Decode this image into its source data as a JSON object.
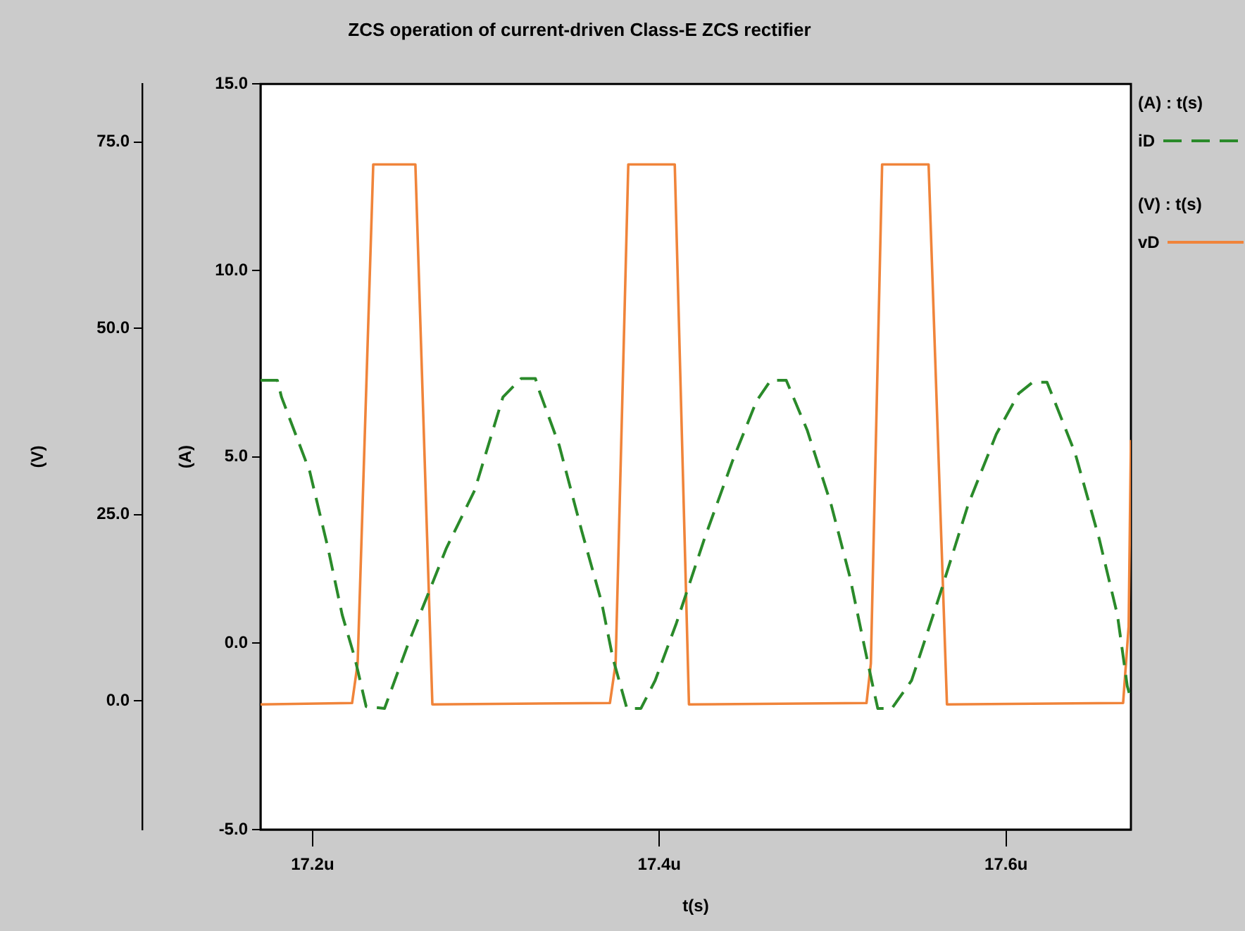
{
  "chart_data": {
    "type": "line",
    "title": "ZCS operation of current-driven Class-E ZCS rectifier",
    "xlabel": "t(s)",
    "ylabel": "(V)",
    "y2label": "(A)",
    "xlim": [
      17.17,
      17.672
    ],
    "xticks": [
      {
        "value": 17.2,
        "label": "17.2u"
      },
      {
        "value": 17.4,
        "label": "17.4u"
      },
      {
        "value": 17.6,
        "label": "17.6u"
      }
    ],
    "y2lim": [
      -5,
      15
    ],
    "y2ticks": [
      {
        "value": -5,
        "label": "-5.0"
      },
      {
        "value": 0,
        "label": "0.0"
      },
      {
        "value": 5,
        "label": "5.0"
      },
      {
        "value": 10,
        "label": "10.0"
      },
      {
        "value": 15,
        "label": "15.0"
      }
    ],
    "ylim": [
      -17.3,
      82.8
    ],
    "yticks": [
      {
        "value": 0,
        "label": "0.0"
      },
      {
        "value": 25,
        "label": "25.0"
      },
      {
        "value": 50,
        "label": "50.0"
      },
      {
        "value": 75,
        "label": "75.0"
      }
    ],
    "legend": "right",
    "marker": "none",
    "annotations": [
      "(A) : t(s)",
      "(V) : t(s)"
    ],
    "series": [
      {
        "name": "iD",
        "color": "#2a8a2a",
        "axis": "y2",
        "line_style": "dashed",
        "x": [
          17.17,
          17.1797,
          17.1821,
          17.1984,
          17.2089,
          17.2171,
          17.2244,
          17.2309,
          17.2415,
          17.2553,
          17.2772,
          17.2935,
          17.3098,
          17.3203,
          17.3285,
          17.3309,
          17.3423,
          17.3553,
          17.3667,
          17.3732,
          17.3813,
          17.3894,
          17.3976,
          17.4098,
          17.426,
          17.4423,
          17.4561,
          17.4642,
          17.4732,
          17.4854,
          17.4992,
          17.5098,
          17.5179,
          17.5236,
          17.526,
          17.5341,
          17.5455,
          17.5618,
          17.578,
          17.5943,
          17.6073,
          17.6154,
          17.6236,
          17.6398,
          17.6537,
          17.6642,
          17.6699,
          17.672
        ],
        "values": [
          7.05,
          7.05,
          6.6,
          4.6,
          2.55,
          0.76,
          -0.4,
          -1.7,
          -1.75,
          0,
          2.55,
          4.1,
          6.6,
          7.1,
          7.1,
          6.75,
          5.3,
          3,
          1.1,
          -0.4,
          -1.75,
          -1.75,
          -1,
          0.53,
          2.8,
          4.9,
          6.5,
          7.05,
          7.05,
          5.7,
          3.7,
          1.8,
          0,
          -1.25,
          -1.75,
          -1.75,
          -1,
          1.3,
          3.7,
          5.6,
          6.7,
          7,
          7,
          5.1,
          2.8,
          0.76,
          -1.15,
          -1.5
        ]
      },
      {
        "name": "vD",
        "color": "#f0843a",
        "axis": "y",
        "line_style": "solid",
        "x": [
          17.17,
          17.2228,
          17.226,
          17.235,
          17.2593,
          17.2691,
          17.3715,
          17.3748,
          17.3821,
          17.4089,
          17.4171,
          17.5195,
          17.522,
          17.5285,
          17.5553,
          17.5659,
          17.6675,
          17.6707,
          17.672
        ],
        "values": [
          -0.5,
          -0.3,
          5,
          72,
          72,
          -0.5,
          -0.3,
          5,
          72,
          72,
          -0.5,
          -0.3,
          5,
          72,
          72,
          -0.5,
          -0.3,
          10,
          35
        ]
      }
    ]
  }
}
